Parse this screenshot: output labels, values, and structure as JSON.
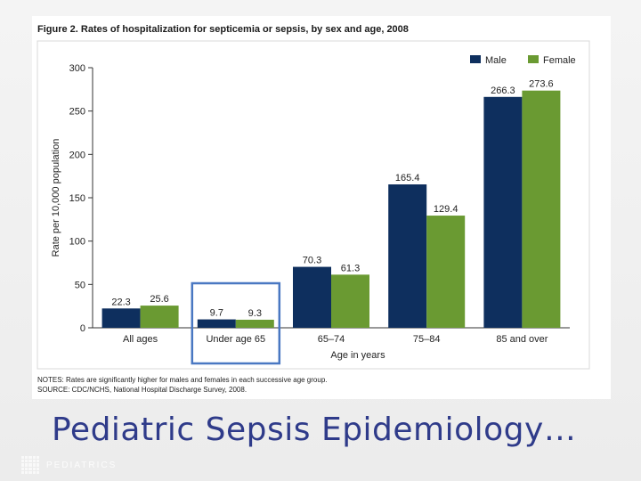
{
  "figure": {
    "title": "Figure 2. Rates of hospitalization for septicemia or sepsis, by sex and age, 2008",
    "notes": "NOTES: Rates are significantly higher for males and females in each successive age group.",
    "source": "SOURCE: CDC/NCHS, National Hospital Discharge Survey, 2008."
  },
  "chart_data": {
    "type": "bar",
    "title": "Figure 2. Rates of hospitalization for septicemia or sepsis, by sex and age, 2008",
    "categories": [
      "All ages",
      "Under age 65",
      "65–74",
      "75–84",
      "85 and over"
    ],
    "series": [
      {
        "name": "Male",
        "color": "#0e2f5e",
        "values": [
          22.3,
          9.7,
          70.3,
          165.4,
          266.3
        ],
        "labels": [
          "22.3",
          "9.7",
          "70.3",
          "165.4",
          "266.3"
        ]
      },
      {
        "name": "Female",
        "color": "#6a9a32",
        "values": [
          25.6,
          9.3,
          61.3,
          129.4,
          273.6
        ],
        "labels": [
          "25.6",
          "9.3",
          "61.3",
          "129.4",
          "273.6"
        ]
      }
    ],
    "xlabel": "Age in years",
    "ylabel": "Rate per 10,000 population",
    "ylim": [
      0,
      300
    ],
    "yticks": [
      0,
      50,
      100,
      150,
      200,
      250,
      300
    ],
    "legend_position": "top-right",
    "highlight_category": "Under age 65",
    "highlight_color": "#4a78c2"
  },
  "slide": {
    "title": "Pediatric Sepsis Epidemiology…",
    "footer_brand": "PEDIATRICS"
  }
}
